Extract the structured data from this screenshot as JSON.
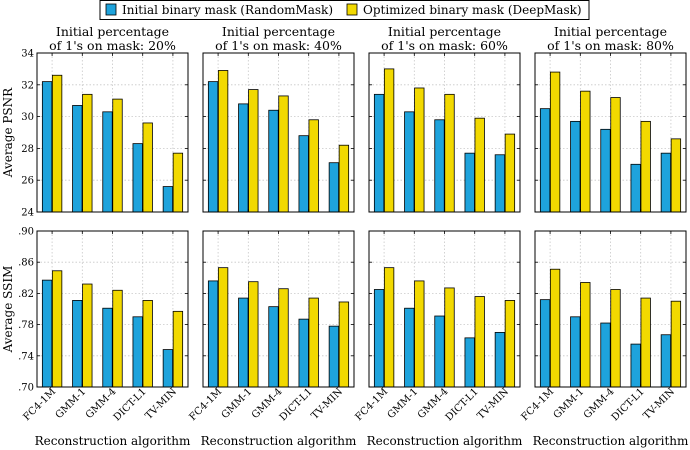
{
  "chart_data": {
    "type": "bar",
    "legend": {
      "placement": "top",
      "entries": [
        {
          "label": "Initial binary mask (RandomMask)",
          "color": "#1ea3dc"
        },
        {
          "label": "Optimized binary mask (DeepMask)",
          "color": "#f2d900"
        }
      ]
    },
    "categories": [
      "FC4-1M",
      "GMM-1",
      "GMM-4",
      "DICT-L1",
      "TV-MIN"
    ],
    "xlabel": "Reconstruction algorithm",
    "grid": true,
    "rows": [
      {
        "ylabel": "Average PSNR",
        "ylim": [
          24,
          34
        ],
        "yticks": [
          24,
          26,
          28,
          30,
          32,
          34
        ],
        "yticklabels": [
          "24",
          "26",
          "28",
          "30",
          "32",
          "34"
        ]
      },
      {
        "ylabel": "Average SSIM",
        "ylim": [
          0.7,
          0.9
        ],
        "yticks": [
          0.7,
          0.74,
          0.78,
          0.82,
          0.86,
          0.9
        ],
        "yticklabels": [
          ".70",
          ".74",
          ".78",
          ".82",
          ".86",
          ".90"
        ]
      }
    ],
    "panels": [
      {
        "title_line1": "Initial percentage",
        "title_line2": "of 1's on mask: 20%",
        "psnr": {
          "random": [
            32.2,
            30.7,
            30.3,
            28.3,
            25.6
          ],
          "deep": [
            32.6,
            31.4,
            31.1,
            29.6,
            27.7
          ]
        },
        "ssim": {
          "random": [
            0.837,
            0.811,
            0.801,
            0.79,
            0.748
          ],
          "deep": [
            0.849,
            0.832,
            0.824,
            0.811,
            0.797
          ]
        }
      },
      {
        "title_line1": "Initial percentage",
        "title_line2": "of 1's on mask: 40%",
        "psnr": {
          "random": [
            32.2,
            30.8,
            30.4,
            28.8,
            27.1
          ],
          "deep": [
            32.9,
            31.7,
            31.3,
            29.8,
            28.2
          ]
        },
        "ssim": {
          "random": [
            0.836,
            0.814,
            0.803,
            0.787,
            0.778
          ],
          "deep": [
            0.853,
            0.835,
            0.826,
            0.814,
            0.809
          ]
        }
      },
      {
        "title_line1": "Initial percentage",
        "title_line2": "of 1's on mask: 60%",
        "psnr": {
          "random": [
            31.4,
            30.3,
            29.8,
            27.7,
            27.6
          ],
          "deep": [
            33.0,
            31.8,
            31.4,
            29.9,
            28.9
          ]
        },
        "ssim": {
          "random": [
            0.825,
            0.801,
            0.791,
            0.763,
            0.77
          ],
          "deep": [
            0.853,
            0.836,
            0.827,
            0.816,
            0.811
          ]
        }
      },
      {
        "title_line1": "Initial percentage",
        "title_line2": "of 1's on mask: 80%",
        "psnr": {
          "random": [
            30.5,
            29.7,
            29.2,
            27.0,
            27.7
          ],
          "deep": [
            32.8,
            31.6,
            31.2,
            29.7,
            28.6
          ]
        },
        "ssim": {
          "random": [
            0.812,
            0.79,
            0.782,
            0.755,
            0.767
          ],
          "deep": [
            0.851,
            0.834,
            0.825,
            0.814,
            0.81
          ]
        }
      }
    ]
  }
}
